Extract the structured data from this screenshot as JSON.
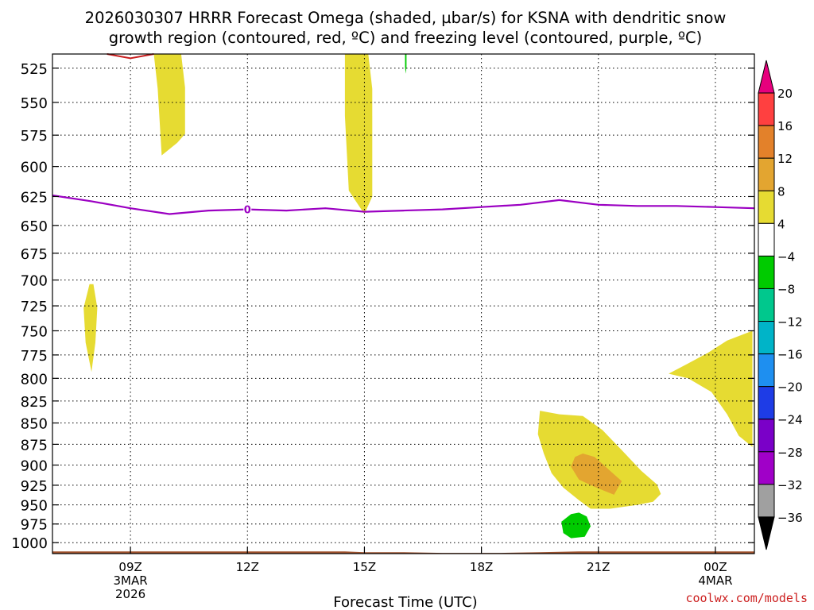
{
  "chart_data": {
    "type": "contour",
    "title_line1": "2026030307 HRRR Forecast Omega (shaded, µbar/s) for KSNA with dendritic snow",
    "title_line2": "growth region (contoured, red, ºC) and freezing level (contoured, purple, ºC)",
    "xlabel": "Forecast Time (UTC)",
    "ylabel": "",
    "watermark": "coolwx.com/models",
    "x_range_hours": [
      7,
      25
    ],
    "y_range_hpa": [
      1015,
      515
    ],
    "x_ticks": [
      {
        "hour": 9,
        "label": "09Z",
        "sub1": "3MAR",
        "sub2": "2026"
      },
      {
        "hour": 12,
        "label": "12Z",
        "sub1": "",
        "sub2": ""
      },
      {
        "hour": 15,
        "label": "15Z",
        "sub1": "",
        "sub2": ""
      },
      {
        "hour": 18,
        "label": "18Z",
        "sub1": "",
        "sub2": ""
      },
      {
        "hour": 21,
        "label": "21Z",
        "sub1": "",
        "sub2": ""
      },
      {
        "hour": 24,
        "label": "00Z",
        "sub1": "4MAR",
        "sub2": ""
      }
    ],
    "y_ticks": [
      525,
      550,
      575,
      600,
      625,
      650,
      675,
      700,
      725,
      750,
      775,
      800,
      825,
      850,
      875,
      900,
      925,
      950,
      975,
      1000
    ],
    "y_tick_labels": [
      "525",
      "550",
      "575",
      "600",
      "625",
      "650",
      "675",
      "700",
      "725",
      "750",
      "775",
      "800",
      "825",
      "850",
      "875",
      "900",
      "925",
      "950",
      "975",
      "1000"
    ],
    "grid": true,
    "omega_regions": [
      {
        "color": "#e6db32",
        "points": [
          [
            9.6,
            515
          ],
          [
            10.3,
            515
          ],
          [
            10.4,
            539
          ],
          [
            10.4,
            574
          ],
          [
            10.2,
            581
          ],
          [
            9.8,
            591
          ],
          [
            9.7,
            540
          ]
        ]
      },
      {
        "color": "#e6db32",
        "points": [
          [
            14.5,
            515
          ],
          [
            15.1,
            515
          ],
          [
            15.2,
            540
          ],
          [
            15.2,
            590
          ],
          [
            15.2,
            625
          ],
          [
            15.0,
            640
          ],
          [
            14.6,
            620
          ],
          [
            14.5,
            560
          ]
        ]
      },
      {
        "color": "#e6db32",
        "points": [
          [
            7.95,
            704
          ],
          [
            8.05,
            704
          ],
          [
            8.15,
            727
          ],
          [
            8.1,
            762
          ],
          [
            8.0,
            793
          ],
          [
            7.85,
            762
          ],
          [
            7.8,
            727
          ]
        ]
      },
      {
        "color": "#e6db32",
        "points": [
          [
            22.8,
            795
          ],
          [
            23.3,
            784
          ],
          [
            23.8,
            773
          ],
          [
            24.3,
            760
          ],
          [
            24.95,
            750
          ],
          [
            24.95,
            878
          ],
          [
            24.6,
            865
          ],
          [
            24.3,
            840
          ],
          [
            23.9,
            815
          ],
          [
            23.3,
            800
          ]
        ]
      },
      {
        "color": "#e6db32",
        "points": [
          [
            19.5,
            836
          ],
          [
            20.0,
            840
          ],
          [
            20.6,
            842
          ],
          [
            21.1,
            858
          ],
          [
            21.6,
            882
          ],
          [
            22.1,
            907
          ],
          [
            22.5,
            924
          ],
          [
            22.6,
            936
          ],
          [
            22.4,
            946
          ],
          [
            22.0,
            950
          ],
          [
            21.3,
            955
          ],
          [
            20.8,
            955
          ],
          [
            20.5,
            944
          ],
          [
            20.1,
            928
          ],
          [
            19.8,
            910
          ],
          [
            19.6,
            886
          ],
          [
            19.45,
            863
          ]
        ]
      },
      {
        "color": "#e3a530",
        "points": [
          [
            20.6,
            886
          ],
          [
            20.9,
            890
          ],
          [
            21.3,
            907
          ],
          [
            21.6,
            920
          ],
          [
            21.4,
            937
          ],
          [
            20.9,
            927
          ],
          [
            20.5,
            918
          ],
          [
            20.3,
            902
          ],
          [
            20.4,
            890
          ]
        ]
      },
      {
        "color": "#00cb00",
        "points": [
          [
            20.3,
            962
          ],
          [
            20.5,
            960
          ],
          [
            20.7,
            965
          ],
          [
            20.8,
            978
          ],
          [
            20.65,
            992
          ],
          [
            20.3,
            994
          ],
          [
            20.1,
            987
          ],
          [
            20.05,
            972
          ]
        ]
      },
      {
        "color": "#00cb00",
        "points": [
          [
            16.04,
            515
          ],
          [
            16.08,
            515
          ],
          [
            16.08,
            524
          ],
          [
            16.06,
            529
          ],
          [
            16.04,
            524
          ]
        ]
      }
    ],
    "snow_growth_contour": {
      "color": "#c81f1f",
      "points": [
        [
          8.4,
          514
        ],
        [
          9.0,
          518
        ],
        [
          9.6,
          515
        ]
      ]
    },
    "freezing_level": {
      "color": "#9b00c2",
      "label": "0",
      "label_hour": 12,
      "points": [
        [
          7,
          624
        ],
        [
          8,
          629
        ],
        [
          9,
          635
        ],
        [
          10,
          640
        ],
        [
          11,
          637
        ],
        [
          12,
          636
        ],
        [
          13,
          637
        ],
        [
          14,
          635
        ],
        [
          15,
          638
        ],
        [
          16,
          637
        ],
        [
          17,
          636
        ],
        [
          18,
          634
        ],
        [
          19,
          632
        ],
        [
          20,
          628
        ],
        [
          21,
          632
        ],
        [
          22,
          633
        ],
        [
          23,
          633
        ],
        [
          24,
          634
        ],
        [
          25,
          635
        ]
      ]
    },
    "surface_band": {
      "color": "#a0522d",
      "points": [
        [
          7,
          1012
        ],
        [
          14.5,
          1012
        ],
        [
          15.0,
          1013
        ],
        [
          16,
          1013
        ],
        [
          17,
          1014
        ],
        [
          18.5,
          1014
        ],
        [
          19.5,
          1013
        ],
        [
          20.5,
          1012
        ],
        [
          25,
          1012
        ]
      ]
    },
    "colorbar": {
      "segments": [
        {
          "color": "#e7007d",
          "shape": "tri-up"
        },
        {
          "color": "#ff4040",
          "shape": "rect"
        },
        {
          "color": "#e3812a",
          "shape": "rect"
        },
        {
          "color": "#e3a530",
          "shape": "rect"
        },
        {
          "color": "#e6db32",
          "shape": "rect"
        },
        {
          "color": "#ffffff",
          "shape": "rect"
        },
        {
          "color": "#00cb00",
          "shape": "rect"
        },
        {
          "color": "#00c88d",
          "shape": "rect"
        },
        {
          "color": "#00b4c8",
          "shape": "rect"
        },
        {
          "color": "#1e8ff0",
          "shape": "rect"
        },
        {
          "color": "#1e3ce6",
          "shape": "rect"
        },
        {
          "color": "#7a00c8",
          "shape": "rect"
        },
        {
          "color": "#a000c8",
          "shape": "rect"
        },
        {
          "color": "#a0a0a0",
          "shape": "rect"
        },
        {
          "color": "#000000",
          "shape": "tri-down"
        }
      ],
      "labels": [
        "20",
        "16",
        "12",
        "8",
        "4",
        "−4",
        "−8",
        "−12",
        "−16",
        "−20",
        "−24",
        "−28",
        "−32",
        "−36"
      ]
    }
  }
}
